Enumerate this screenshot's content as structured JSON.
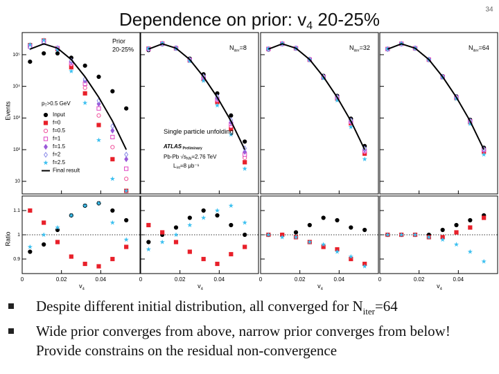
{
  "slide": {
    "title_parts": [
      "Dependence on prior: v",
      "4",
      " 20-25%"
    ],
    "page_number": "34",
    "bullets": [
      [
        "Despite different initial distribution, all converged for N",
        "iter",
        "=64"
      ],
      [
        "Wide prior converges from above, narrow prior converges from below! Provide constrains on the residual non-convergence"
      ]
    ]
  },
  "chart_data": {
    "type": "scatter",
    "log_y": true,
    "y_label": "Events",
    "ratio_label": "Ratio",
    "x_label_parts": [
      "v",
      "4"
    ],
    "x": [
      0.004,
      0.011,
      0.018,
      0.025,
      0.032,
      0.039,
      0.046,
      0.053
    ],
    "xlim": [
      0,
      0.06
    ],
    "xticks": [
      0,
      0.02,
      0.04
    ],
    "ylim": [
      4,
      500000
    ],
    "yticks": [
      {
        "value": 10,
        "label": "10"
      },
      {
        "value": 100,
        "label": "10²"
      },
      {
        "value": 1000,
        "label": "10³"
      },
      {
        "value": 10000,
        "label": "10⁴"
      },
      {
        "value": 100000,
        "label": "10⁵"
      }
    ],
    "ratio_ylim": [
      0.84,
      1.16
    ],
    "ratio_yticks": [
      0.9,
      1,
      1.1
    ],
    "panels": [
      {
        "label_lines": [
          "Prior",
          "20-25%"
        ],
        "annotations": [
          {
            "parts": [
              "p",
              "T",
              ">0.5 GeV"
            ]
          }
        ],
        "series": [
          {
            "name": "Input",
            "color": "#000000",
            "marker": "circle",
            "values": [
              60000,
              110000,
              110000,
              80000,
              45000,
              20000,
              7000,
              2000
            ]
          },
          {
            "name": "f=0",
            "color": "#e8202a",
            "marker": "square",
            "values": [
              200000,
              280000,
              150000,
              40000,
              6000,
              600,
              50,
              5
            ]
          },
          {
            "name": "f=0.5",
            "color": "#f0509a",
            "marker": "open-circle",
            "values": [
              190000,
              270000,
              160000,
              50000,
              9000,
              1200,
              120,
              12
            ]
          },
          {
            "name": "f=1",
            "color": "#e040c0",
            "marker": "open-square",
            "values": [
              180000,
              260000,
              160000,
              55000,
              12000,
              2000,
              250,
              25
            ]
          },
          {
            "name": "f=1.5",
            "color": "#9a5ad8",
            "marker": "diamond",
            "values": [
              180000,
              250000,
              160000,
              60000,
              15000,
              2800,
              400,
              50
            ]
          },
          {
            "name": "f=2",
            "color": "#8a8ae8",
            "marker": "open-diamond",
            "values": [
              170000,
              240000,
              160000,
              65000,
              17000,
              3500,
              550,
              70
            ]
          },
          {
            "name": "f=2.5",
            "color": "#3cc0f0",
            "marker": "star",
            "values": [
              210000,
              290000,
              140000,
              30000,
              3000,
              200,
              12,
              5
            ]
          },
          {
            "name": "Final result",
            "color": "#000000",
            "marker": "line",
            "values": [
              150000,
              220000,
              160000,
              70000,
              20000,
              4500,
              800,
              100
            ]
          }
        ],
        "ratio_series": [
          {
            "color": "#000000",
            "marker": "circle",
            "values": [
              0.93,
              0.96,
              1.02,
              1.08,
              1.12,
              1.13,
              1.1,
              1.06
            ]
          },
          {
            "color": "#e8202a",
            "marker": "square",
            "values": [
              1.1,
              1.05,
              0.97,
              0.91,
              0.88,
              0.87,
              0.9,
              0.95
            ]
          },
          {
            "color": "#3cc0f0",
            "marker": "star",
            "values": [
              0.95,
              1.0,
              1.03,
              1.08,
              1.12,
              1.13,
              1.05,
              0.98
            ]
          }
        ]
      },
      {
        "label_parts": [
          "N",
          "iter",
          "=8"
        ],
        "annotations": [
          {
            "parts": [
              "Single particle unfolding"
            ]
          },
          {
            "parts": [
              "ATLAS",
              " Preliminary"
            ]
          },
          {
            "parts": [
              "Pb-Pb √s",
              "NN",
              "=2.76 TeV"
            ]
          },
          {
            "parts": [
              "L",
              "int",
              "=8 μb⁻¹"
            ]
          }
        ],
        "series": [
          {
            "name": "Input",
            "color": "#000000",
            "marker": "circle",
            "values": [
              140000,
              215000,
              165000,
              75000,
              24000,
              6000,
              1200,
              180
            ]
          },
          {
            "name": "f=0",
            "color": "#e8202a",
            "marker": "square",
            "values": [
              155000,
              225000,
              158000,
              66000,
              17000,
              3200,
              450,
              40
            ]
          },
          {
            "name": "f=0.5",
            "color": "#f0509a",
            "marker": "open-circle",
            "values": [
              153000,
              223000,
              159000,
              67000,
              18000,
              3600,
              550,
              55
            ]
          },
          {
            "name": "f=1",
            "color": "#e040c0",
            "marker": "open-square",
            "values": [
              152000,
              222000,
              160000,
              68000,
              19000,
              3900,
              650,
              70
            ]
          },
          {
            "name": "f=1.5",
            "color": "#9a5ad8",
            "marker": "diamond",
            "values": [
              151000,
              221000,
              160000,
              69000,
              19500,
              4200,
              720,
              85
            ]
          },
          {
            "name": "f=2",
            "color": "#8a8ae8",
            "marker": "open-diamond",
            "values": [
              150000,
              220000,
              161000,
              70000,
              20500,
              4700,
              850,
              110
            ]
          },
          {
            "name": "f=2.5",
            "color": "#3cc0f0",
            "marker": "star",
            "values": [
              158000,
              228000,
              156000,
              63000,
              15000,
              2500,
              300,
              25
            ]
          },
          {
            "name": "Final result",
            "color": "#000000",
            "marker": "line",
            "values": [
              150000,
              220000,
              160000,
              70000,
              20000,
              4500,
              800,
              100
            ]
          }
        ],
        "ratio_series": [
          {
            "color": "#000000",
            "marker": "circle",
            "values": [
              0.97,
              1.0,
              1.03,
              1.07,
              1.1,
              1.08,
              1.04,
              1.0
            ]
          },
          {
            "color": "#e8202a",
            "marker": "square",
            "values": [
              1.04,
              1.01,
              0.97,
              0.93,
              0.9,
              0.88,
              0.92,
              0.95
            ]
          },
          {
            "color": "#3cc0f0",
            "marker": "star",
            "values": [
              0.94,
              0.97,
              1.0,
              1.04,
              1.07,
              1.1,
              1.12,
              1.05
            ]
          }
        ]
      },
      {
        "label_parts": [
          "N",
          "iter",
          "=32"
        ],
        "annotations": [],
        "series": [
          {
            "name": "Input",
            "color": "#000000",
            "marker": "circle",
            "values": [
              145000,
              218000,
              162000,
              72000,
              21500,
              5000,
              950,
              130
            ]
          },
          {
            "name": "f=0",
            "color": "#e8202a",
            "marker": "square",
            "values": [
              152000,
              221000,
              159000,
              69000,
              19000,
              4100,
              680,
              75
            ]
          },
          {
            "name": "f=0.5",
            "color": "#f0509a",
            "marker": "open-circle",
            "values": [
              151000,
              221000,
              160000,
              69500,
              19400,
              4300,
              720,
              85
            ]
          },
          {
            "name": "f=1",
            "color": "#e040c0",
            "marker": "open-square",
            "values": [
              151000,
              220000,
              160000,
              70000,
              19700,
              4400,
              760,
              92
            ]
          },
          {
            "name": "f=1.5",
            "color": "#9a5ad8",
            "marker": "diamond",
            "values": [
              150000,
              220000,
              160000,
              70000,
              20000,
              4500,
              800,
              100
            ]
          },
          {
            "name": "f=2",
            "color": "#8a8ae8",
            "marker": "open-diamond",
            "values": [
              150000,
              220000,
              160000,
              70500,
              20300,
              4600,
              840,
              108
            ]
          },
          {
            "name": "f=2.5",
            "color": "#3cc0f0",
            "marker": "star",
            "values": [
              153000,
              223000,
              158000,
              68000,
              18000,
              3600,
              520,
              50
            ]
          },
          {
            "name": "Final result",
            "color": "#000000",
            "marker": "line",
            "values": [
              150000,
              220000,
              160000,
              70000,
              20000,
              4500,
              800,
              100
            ]
          }
        ],
        "ratio_series": [
          {
            "color": "#000000",
            "marker": "circle",
            "values": [
              1.0,
              1.0,
              1.01,
              1.04,
              1.07,
              1.06,
              1.03,
              1.02
            ]
          },
          {
            "color": "#e8202a",
            "marker": "square",
            "values": [
              1.0,
              1.0,
              0.99,
              0.97,
              0.95,
              0.94,
              0.9,
              0.88
            ]
          },
          {
            "color": "#3cc0f0",
            "marker": "star",
            "values": [
              1.0,
              0.99,
              0.99,
              0.97,
              0.96,
              0.93,
              0.91,
              0.87
            ]
          }
        ]
      },
      {
        "label_parts": [
          "N",
          "iter",
          "=64"
        ],
        "annotations": [],
        "series": [
          {
            "name": "Input",
            "color": "#000000",
            "marker": "circle",
            "values": [
              148000,
              219000,
              161000,
              71000,
              20800,
              4800,
              880,
              115
            ]
          },
          {
            "name": "f=0",
            "color": "#e8202a",
            "marker": "square",
            "values": [
              151000,
              221000,
              160000,
              69500,
              19600,
              4300,
              740,
              88
            ]
          },
          {
            "name": "f=0.5",
            "color": "#f0509a",
            "marker": "open-circle",
            "values": [
              151000,
              220000,
              160000,
              69800,
              19800,
              4400,
              770,
              94
            ]
          },
          {
            "name": "f=1",
            "color": "#e040c0",
            "marker": "open-square",
            "values": [
              150000,
              220000,
              160000,
              70000,
              19900,
              4450,
              790,
              98
            ]
          },
          {
            "name": "f=1.5",
            "color": "#9a5ad8",
            "marker": "diamond",
            "values": [
              150000,
              220000,
              160000,
              70000,
              20000,
              4500,
              800,
              100
            ]
          },
          {
            "name": "f=2",
            "color": "#8a8ae8",
            "marker": "open-diamond",
            "values": [
              150000,
              220000,
              160000,
              70200,
              20100,
              4550,
              815,
              103
            ]
          },
          {
            "name": "f=2.5",
            "color": "#3cc0f0",
            "marker": "star",
            "values": [
              152000,
              222000,
              159000,
              69000,
              19000,
              4000,
              650,
              70
            ]
          },
          {
            "name": "Final result",
            "color": "#000000",
            "marker": "line",
            "values": [
              150000,
              220000,
              160000,
              70000,
              20000,
              4500,
              800,
              100
            ]
          }
        ],
        "ratio_series": [
          {
            "color": "#000000",
            "marker": "circle",
            "values": [
              1.0,
              1.0,
              1.0,
              1.0,
              1.02,
              1.04,
              1.06,
              1.08
            ]
          },
          {
            "color": "#e8202a",
            "marker": "square",
            "values": [
              1.0,
              1.0,
              1.0,
              0.99,
              0.99,
              1.01,
              1.03,
              1.07
            ]
          },
          {
            "color": "#3cc0f0",
            "marker": "star",
            "values": [
              1.0,
              1.0,
              1.0,
              0.99,
              0.98,
              0.96,
              0.93,
              0.89
            ]
          }
        ]
      }
    ]
  }
}
